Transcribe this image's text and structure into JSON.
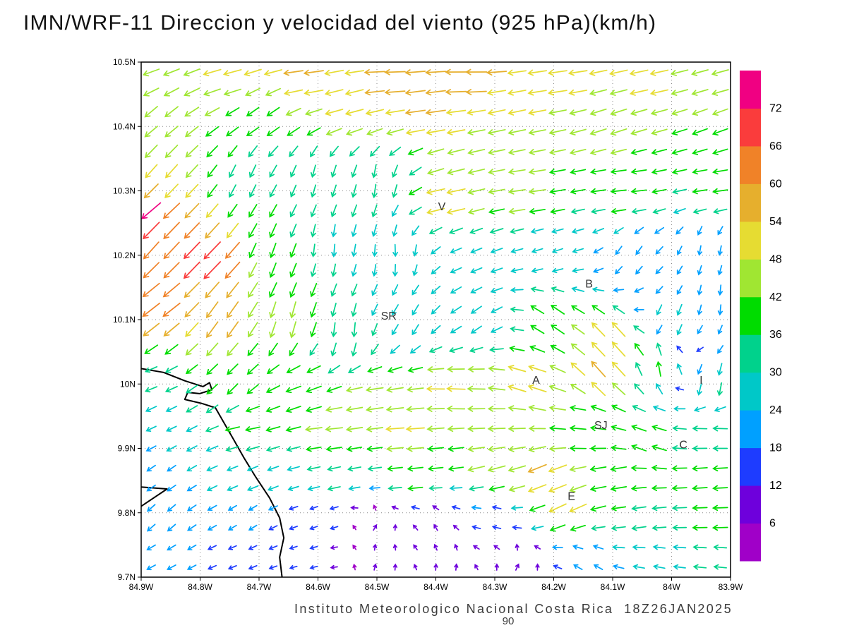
{
  "title": "IMN/WRF-11 Direccion y velocidad del viento (925 hPa)(km/h)",
  "footer": {
    "text": "Instituto Meteorologico Nacional Costa Rica  18Z26JAN2025",
    "station_code": "90"
  },
  "chart_data": {
    "type": "quiver",
    "title": "IMN/WRF-11 Direccion y velocidad del viento (925 hPa)(km/h)",
    "model": "IMN/WRF-11",
    "variable": "Direccion y velocidad del viento",
    "level": "925 hPa",
    "units": "km/h",
    "valid_time": "18Z26JAN2025",
    "source": "Instituto Meteorologico Nacional Costa Rica",
    "x_axis": {
      "range_deg_west": [
        84.9,
        83.9
      ],
      "tick_values": [
        84.9,
        84.8,
        84.7,
        84.6,
        84.5,
        84.4,
        84.3,
        84.2,
        84.1,
        84.0,
        83.9
      ],
      "tick_labels": [
        "84.9W",
        "84.8W",
        "84.7W",
        "84.6W",
        "84.5W",
        "84.4W",
        "84.3W",
        "84.2W",
        "84.1W",
        "84W",
        "83.9W"
      ]
    },
    "y_axis": {
      "range_deg_north": [
        9.7,
        10.5
      ],
      "tick_values": [
        9.7,
        9.8,
        9.9,
        10.0,
        10.1,
        10.2,
        10.3,
        10.4,
        10.5
      ],
      "tick_labels": [
        "9.7N",
        "9.8N",
        "9.9N",
        "10N",
        "10.1N",
        "10.2N",
        "10.3N",
        "10.4N",
        "10.5N"
      ]
    },
    "grid": {
      "cols": 29,
      "rows": 26
    },
    "colorbar": {
      "levels": [
        6,
        12,
        18,
        24,
        30,
        36,
        42,
        48,
        54,
        60,
        66,
        72
      ],
      "colors": [
        "#A000C8",
        "#6E00DC",
        "#1E3CFF",
        "#00A0FF",
        "#00C8C8",
        "#00D28C",
        "#00DC00",
        "#A0E632",
        "#E6DC32",
        "#E6AF2D",
        "#F08228",
        "#FA3C3C",
        "#F00082"
      ]
    },
    "stations": [
      {
        "label": "V",
        "lon_w": 84.39,
        "lat_n": 10.27
      },
      {
        "label": "B",
        "lon_w": 84.14,
        "lat_n": 10.15
      },
      {
        "label": "SR",
        "lon_w": 84.48,
        "lat_n": 10.1
      },
      {
        "label": "A",
        "lon_w": 84.23,
        "lat_n": 10.0
      },
      {
        "label": "I",
        "lon_w": 83.95,
        "lat_n": 10.0
      },
      {
        "label": "SJ",
        "lon_w": 84.12,
        "lat_n": 9.93
      },
      {
        "label": "C",
        "lon_w": 83.98,
        "lat_n": 9.9
      },
      {
        "label": "E",
        "lon_w": 84.17,
        "lat_n": 9.82
      }
    ],
    "coastline": [
      [
        [
          84.9,
          10.024
        ],
        [
          84.862,
          10.018
        ],
        [
          84.826,
          10.005
        ],
        [
          84.795,
          9.996
        ],
        [
          84.784,
          10.002
        ],
        [
          84.78,
          9.991
        ],
        [
          84.801,
          9.985
        ],
        [
          84.821,
          9.987
        ],
        [
          84.826,
          9.976
        ],
        [
          84.798,
          9.97
        ],
        [
          84.774,
          9.963
        ],
        [
          84.759,
          9.939
        ],
        [
          84.744,
          9.915
        ],
        [
          84.726,
          9.886
        ],
        [
          84.706,
          9.856
        ],
        [
          84.682,
          9.823
        ],
        [
          84.665,
          9.792
        ],
        [
          84.658,
          9.761
        ],
        [
          84.665,
          9.731
        ],
        [
          84.661,
          9.7
        ]
      ],
      [
        [
          84.9,
          9.84
        ],
        [
          84.856,
          9.837
        ],
        [
          84.9,
          9.81
        ]
      ]
    ],
    "flow_control_point_format": [
      "lon_deg_west",
      "lat_deg_north",
      "direction_toward_deg_compass",
      "speed_kmh"
    ],
    "flow_control_points": [
      [
        84.88,
        10.48,
        250,
        46
      ],
      [
        84.75,
        10.48,
        255,
        50
      ],
      [
        84.62,
        10.48,
        262,
        55
      ],
      [
        84.48,
        10.48,
        268,
        58
      ],
      [
        84.35,
        10.48,
        270,
        60
      ],
      [
        84.2,
        10.48,
        262,
        52
      ],
      [
        84.05,
        10.48,
        258,
        50
      ],
      [
        83.92,
        10.48,
        255,
        46
      ],
      [
        84.88,
        10.42,
        230,
        44
      ],
      [
        84.7,
        10.42,
        235,
        38
      ],
      [
        84.55,
        10.43,
        255,
        50
      ],
      [
        84.42,
        10.43,
        262,
        56
      ],
      [
        84.28,
        10.42,
        258,
        48
      ],
      [
        84.1,
        10.41,
        252,
        45
      ],
      [
        83.93,
        10.41,
        250,
        42
      ],
      [
        84.87,
        10.33,
        222,
        48
      ],
      [
        84.72,
        10.32,
        205,
        34
      ],
      [
        84.6,
        10.32,
        195,
        30
      ],
      [
        84.5,
        10.31,
        188,
        33
      ],
      [
        84.38,
        10.29,
        258,
        52
      ],
      [
        84.25,
        10.3,
        262,
        45
      ],
      [
        84.08,
        10.3,
        264,
        40
      ],
      [
        83.93,
        10.3,
        262,
        38
      ],
      [
        84.9,
        10.26,
        230,
        74
      ],
      [
        84.88,
        10.22,
        222,
        66
      ],
      [
        84.78,
        10.19,
        224,
        70
      ],
      [
        84.68,
        10.2,
        200,
        40
      ],
      [
        84.58,
        10.21,
        185,
        30
      ],
      [
        84.47,
        10.2,
        178,
        28
      ],
      [
        84.34,
        10.2,
        248,
        28
      ],
      [
        84.2,
        10.2,
        252,
        24
      ],
      [
        84.07,
        10.2,
        215,
        22
      ],
      [
        83.94,
        10.21,
        190,
        20
      ],
      [
        84.87,
        10.12,
        232,
        62
      ],
      [
        84.76,
        10.1,
        215,
        55
      ],
      [
        84.65,
        10.1,
        195,
        45
      ],
      [
        84.55,
        10.08,
        185,
        36
      ],
      [
        84.45,
        10.1,
        210,
        28
      ],
      [
        84.33,
        10.1,
        235,
        30
      ],
      [
        84.2,
        10.1,
        305,
        42
      ],
      [
        84.1,
        10.07,
        318,
        55
      ],
      [
        84.0,
        10.1,
        200,
        28
      ],
      [
        83.92,
        10.13,
        185,
        22
      ],
      [
        84.88,
        10.0,
        248,
        30
      ],
      [
        84.75,
        10.0,
        225,
        38
      ],
      [
        84.62,
        9.99,
        250,
        42
      ],
      [
        84.5,
        9.98,
        262,
        46
      ],
      [
        84.37,
        9.99,
        272,
        50
      ],
      [
        84.24,
        10.0,
        288,
        52
      ],
      [
        84.12,
        10.02,
        318,
        58
      ],
      [
        84.02,
        10.03,
        350,
        38
      ],
      [
        83.93,
        10.0,
        190,
        32
      ],
      [
        84.87,
        9.93,
        245,
        24
      ],
      [
        84.72,
        9.93,
        258,
        38
      ],
      [
        84.58,
        9.93,
        264,
        46
      ],
      [
        84.45,
        9.93,
        266,
        50
      ],
      [
        84.3,
        9.93,
        268,
        46
      ],
      [
        84.17,
        9.93,
        275,
        42
      ],
      [
        84.05,
        9.91,
        290,
        40
      ],
      [
        83.93,
        9.93,
        272,
        36
      ],
      [
        84.87,
        9.86,
        235,
        22
      ],
      [
        84.72,
        9.86,
        248,
        26
      ],
      [
        84.58,
        9.86,
        258,
        32
      ],
      [
        84.44,
        9.86,
        264,
        40
      ],
      [
        84.3,
        9.87,
        255,
        48
      ],
      [
        84.22,
        9.86,
        248,
        55
      ],
      [
        84.1,
        9.86,
        260,
        42
      ],
      [
        83.95,
        9.86,
        266,
        38
      ],
      [
        84.87,
        9.79,
        228,
        22
      ],
      [
        84.72,
        9.79,
        238,
        18
      ],
      [
        84.6,
        9.79,
        250,
        14
      ],
      [
        84.5,
        9.78,
        30,
        8
      ],
      [
        84.4,
        9.78,
        330,
        10
      ],
      [
        84.3,
        9.79,
        285,
        16
      ],
      [
        84.18,
        9.81,
        245,
        52
      ],
      [
        84.06,
        9.79,
        262,
        36
      ],
      [
        83.92,
        9.79,
        268,
        38
      ],
      [
        84.87,
        9.72,
        242,
        20
      ],
      [
        84.74,
        9.72,
        248,
        16
      ],
      [
        84.62,
        9.72,
        255,
        12
      ],
      [
        84.5,
        9.72,
        15,
        8
      ],
      [
        84.38,
        9.72,
        8,
        8
      ],
      [
        84.26,
        9.72,
        25,
        10
      ],
      [
        84.14,
        9.72,
        300,
        20
      ],
      [
        84.03,
        9.72,
        280,
        26
      ],
      [
        83.92,
        9.72,
        276,
        30
      ]
    ]
  }
}
